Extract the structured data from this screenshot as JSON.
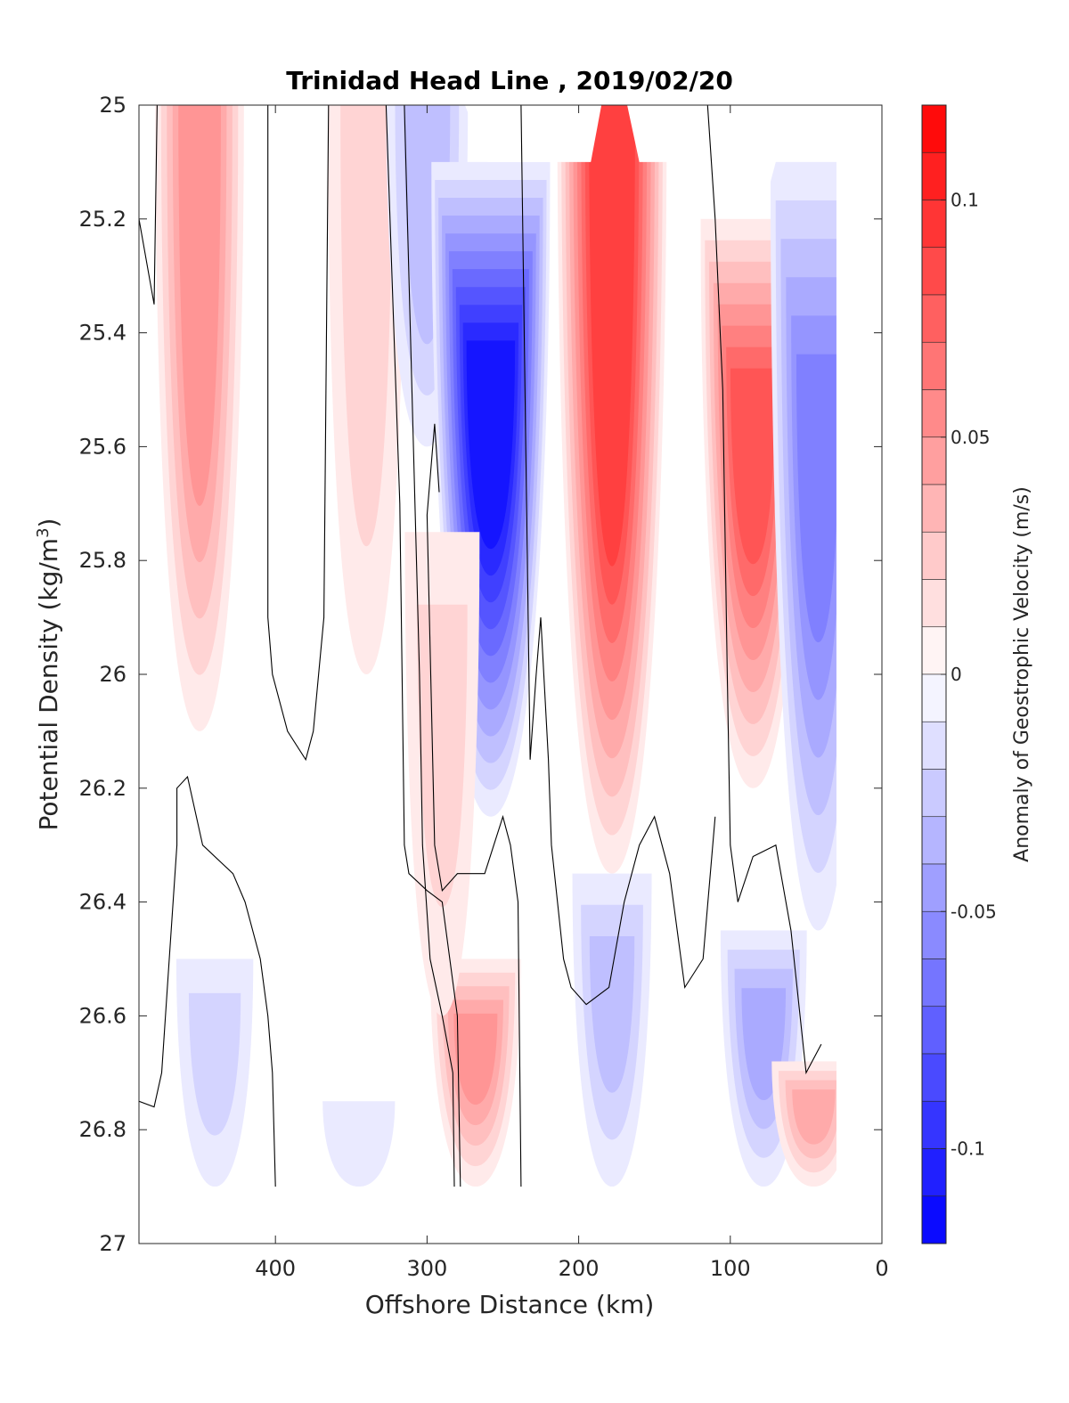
{
  "chart_data": {
    "type": "contour",
    "title": "Trinidad Head Line , 2019/02/20",
    "xlabel": "Offshore Distance (km)",
    "ylabel": "Potential Density (kg/m",
    "ylabel_sup": "3",
    "ylabel_close": ")",
    "xlim": [
      490,
      0
    ],
    "ylim": [
      25,
      27
    ],
    "x_reversed": true,
    "y_reversed": true,
    "x_ticks": [
      400,
      300,
      200,
      100,
      0
    ],
    "x_tick_labels": [
      "400",
      "300",
      "200",
      "100",
      "0"
    ],
    "y_ticks": [
      25,
      25.2,
      25.4,
      25.6,
      25.8,
      26,
      26.2,
      26.4,
      26.6,
      26.8,
      27
    ],
    "y_tick_labels": [
      "25",
      "25.2",
      "25.4",
      "25.6",
      "25.8",
      "26",
      "26.2",
      "26.4",
      "26.6",
      "26.8",
      "27"
    ],
    "colorbar": {
      "label": "Anomaly of Geostrophic Velocity (m/s)",
      "limits": [
        -0.12,
        0.12
      ],
      "step": 0.01,
      "ticks": [
        0.1,
        0.05,
        0,
        -0.05,
        -0.1
      ],
      "tick_labels": [
        "0.1",
        "0.05",
        "0",
        "-0.05",
        "-0.1"
      ],
      "color_negative_end": "#0000ff",
      "color_positive_end": "#ff0000",
      "color_zero": "#ffffff"
    },
    "fields": [
      {
        "x": 450,
        "y_top": 25.0,
        "y_bottom": 26.1,
        "peak": 0.045,
        "description_sign": "positive"
      },
      {
        "x": 340,
        "y_top": 25.0,
        "y_bottom": 26.0,
        "peak": 0.02,
        "description_sign": "positive"
      },
      {
        "x": 300,
        "y_top": 25.0,
        "y_bottom": 25.6,
        "peak": -0.03,
        "description_sign": "negative"
      },
      {
        "x": 258,
        "y_top": 25.1,
        "y_bottom": 26.25,
        "peak": -0.11,
        "description_sign": "negative"
      },
      {
        "x": 178,
        "y_top": 25.0,
        "y_bottom": 26.35,
        "peak": 0.09,
        "description_sign": "positive"
      },
      {
        "x": 85,
        "y_top": 25.2,
        "y_bottom": 26.2,
        "peak": 0.08,
        "description_sign": "positive"
      },
      {
        "x": 42,
        "y_top": 25.1,
        "y_bottom": 26.45,
        "peak": -0.06,
        "description_sign": "negative"
      },
      {
        "x": 268,
        "y_top": 26.5,
        "y_bottom": 26.9,
        "peak": 0.05,
        "description_sign": "positive"
      },
      {
        "x": 290,
        "y_top": 25.75,
        "y_bottom": 26.6,
        "peak": 0.015,
        "description_sign": "positive"
      },
      {
        "x": 178,
        "y_top": 26.35,
        "y_bottom": 26.9,
        "peak": -0.025,
        "description_sign": "negative"
      },
      {
        "x": 78,
        "y_top": 26.45,
        "y_bottom": 26.9,
        "peak": -0.04,
        "description_sign": "negative"
      },
      {
        "x": 440,
        "y_top": 26.5,
        "y_bottom": 26.9,
        "peak": -0.02,
        "description_sign": "negative"
      },
      {
        "x": 345,
        "y_top": 26.75,
        "y_bottom": 26.9,
        "peak": -0.01,
        "description_sign": "negative"
      },
      {
        "x": 45,
        "y_top": 26.68,
        "y_bottom": 26.9,
        "peak": 0.035,
        "description_sign": "positive"
      }
    ]
  }
}
